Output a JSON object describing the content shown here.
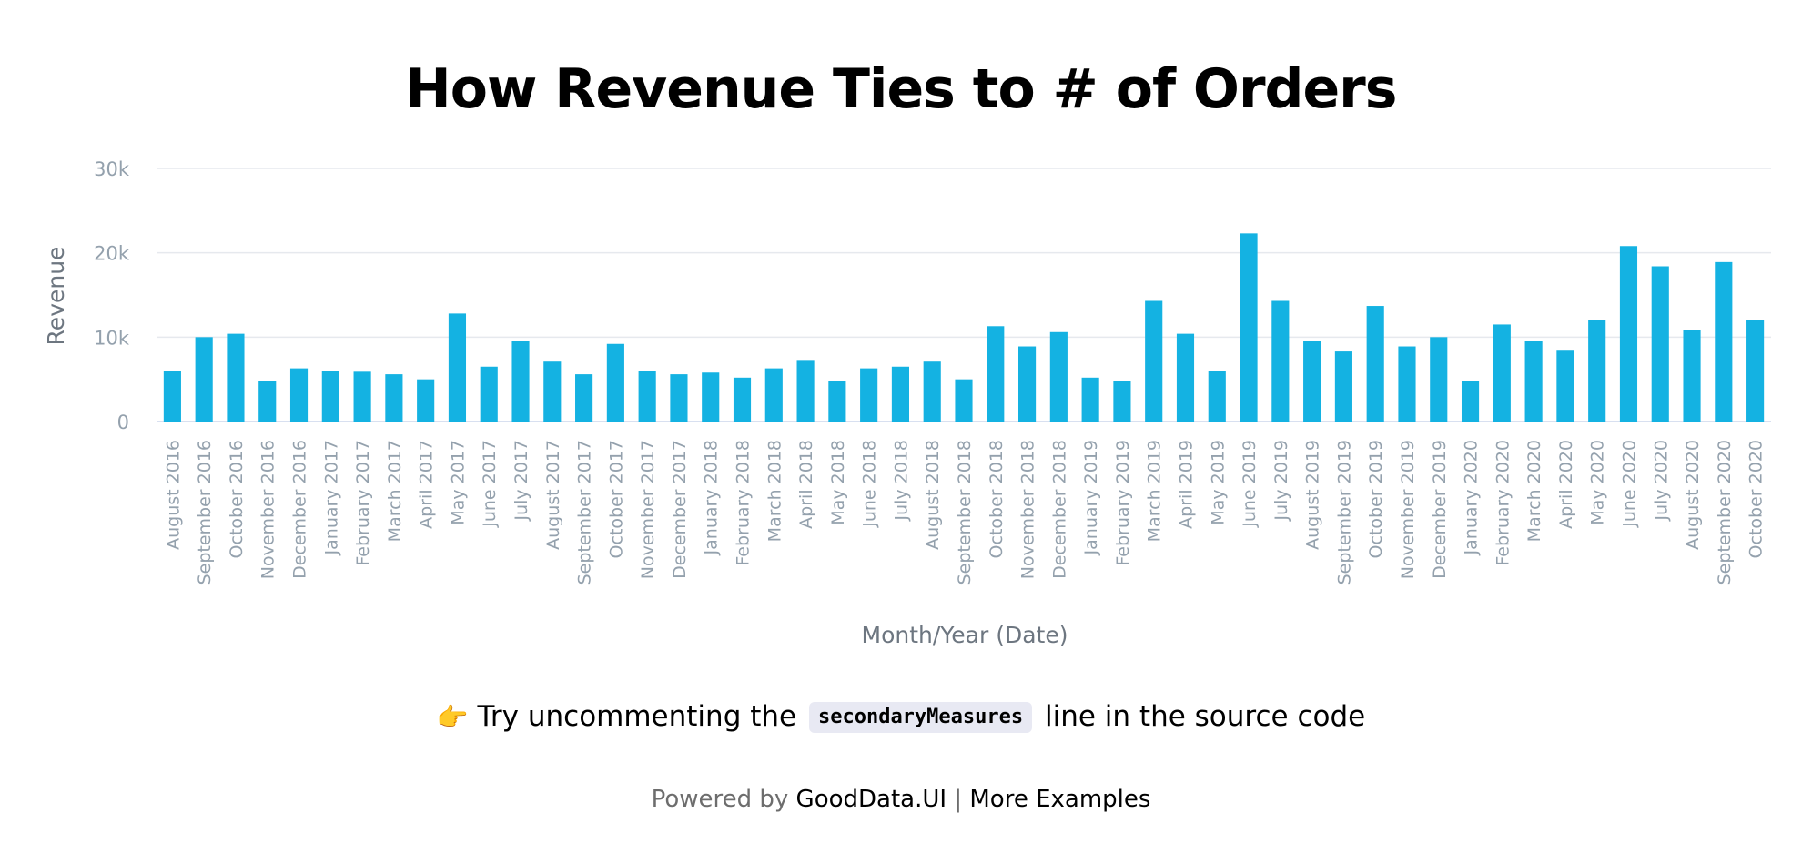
{
  "title": "How Revenue Ties to # of Orders",
  "tip": {
    "emoji": "👉",
    "text_before": "Try uncommenting the",
    "code": "secondaryMeasures",
    "text_after": "line in the source code"
  },
  "footer": {
    "powered_by": "Powered by",
    "brand_link": "GoodData.UI",
    "separator": "|",
    "examples_link": "More Examples"
  },
  "colors": {
    "bar": "#14b2e2",
    "gridline": "#e6e9ee",
    "axis_text": "#94a1ad",
    "axis_title": "#6d7680",
    "code_chip_bg": "#e8e9f3"
  },
  "chart_data": {
    "type": "bar",
    "xlabel": "Month/Year (Date)",
    "ylabel": "Revenue",
    "ylim": [
      0,
      30000
    ],
    "yticks": [
      0,
      10000,
      20000,
      30000
    ],
    "ytick_labels": [
      "0",
      "10k",
      "20k",
      "30k"
    ],
    "grid": true,
    "categories": [
      "August 2016",
      "September 2016",
      "October 2016",
      "November 2016",
      "December 2016",
      "January 2017",
      "February 2017",
      "March 2017",
      "April 2017",
      "May 2017",
      "June 2017",
      "July 2017",
      "August 2017",
      "September 2017",
      "October 2017",
      "November 2017",
      "December 2017",
      "January 2018",
      "February 2018",
      "March 2018",
      "April 2018",
      "May 2018",
      "June 2018",
      "July 2018",
      "August 2018",
      "September 2018",
      "October 2018",
      "November 2018",
      "December 2018",
      "January 2019",
      "February 2019",
      "March 2019",
      "April 2019",
      "May 2019",
      "June 2019",
      "July 2019",
      "August 2019",
      "September 2019",
      "October 2019",
      "November 2019",
      "December 2019",
      "January 2020",
      "February 2020",
      "March 2020",
      "April 2020",
      "May 2020",
      "June 2020",
      "July 2020",
      "August 2020",
      "September 2020",
      "October 2020"
    ],
    "values": [
      6000,
      10000,
      10400,
      4800,
      6300,
      6000,
      5900,
      5600,
      5000,
      12800,
      6500,
      9600,
      7100,
      5600,
      9200,
      6000,
      5600,
      5800,
      5200,
      6300,
      7300,
      4800,
      6300,
      6500,
      7100,
      5000,
      11300,
      8900,
      10600,
      5200,
      4800,
      14300,
      10400,
      6000,
      22300,
      14300,
      9600,
      8300,
      13700,
      8900,
      10000,
      4800,
      11500,
      9600,
      8500,
      12000,
      20800,
      18400,
      10800,
      18900,
      12000
    ]
  }
}
